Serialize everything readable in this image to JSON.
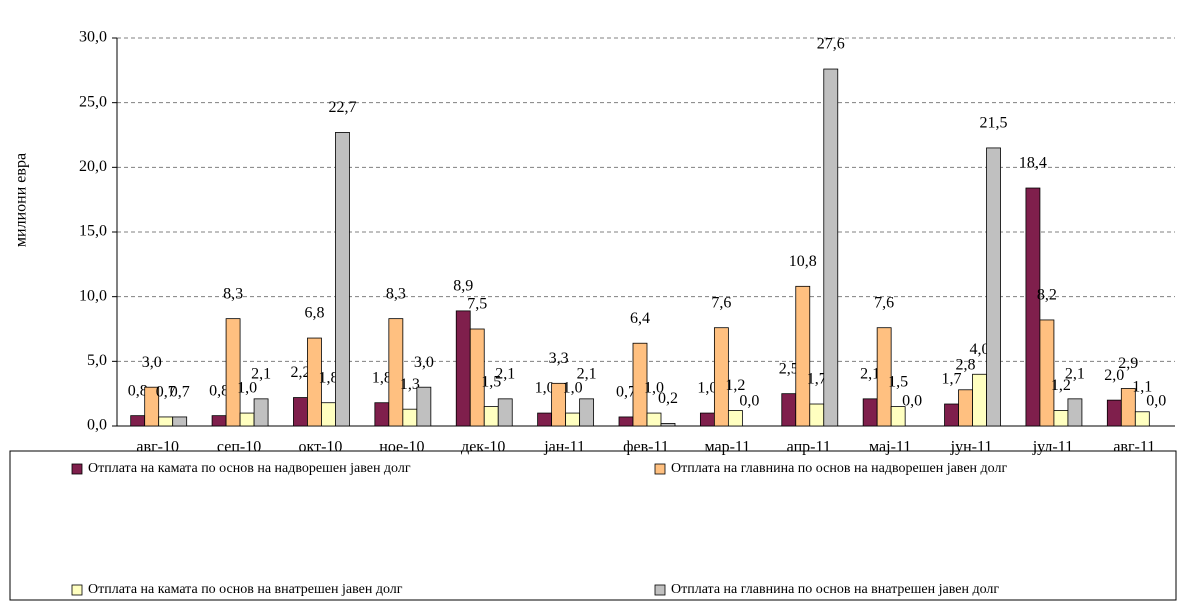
{
  "chart_data": {
    "type": "bar",
    "y_label": "милиони евра",
    "categories": [
      "авг-10",
      "сеп-10",
      "окт-10",
      "ное-10",
      "дек-10",
      "јан-11",
      "фев-11",
      "мар-11",
      "апр-11",
      "мај-11",
      "јун-11",
      "јул-11",
      "авг-11"
    ],
    "series": [
      {
        "name": "Отплата на камата по основ на надворешен јавен долг",
        "color": "#7f1f4c",
        "values": [
          0.8,
          0.8,
          2.2,
          1.8,
          8.9,
          1.0,
          0.7,
          1.0,
          2.5,
          2.1,
          1.7,
          18.4,
          2.0
        ],
        "value_labels": [
          "0,8",
          "0,8",
          "2,2",
          "1,8",
          "8,9",
          "1,0",
          "0,7",
          "1,0",
          "2,5",
          "2,1",
          "1,7",
          "18,4",
          "2,0"
        ]
      },
      {
        "name": "Отплата на главнина по основ на надворешен јавен долг",
        "color": "#ffc080",
        "values": [
          3.0,
          8.3,
          6.8,
          8.3,
          7.5,
          3.3,
          6.4,
          7.6,
          10.8,
          7.6,
          2.8,
          8.2,
          2.9
        ],
        "value_labels": [
          "3,0",
          "8,3",
          "6,8",
          "8,3",
          "7,5",
          "3,3",
          "6,4",
          "7,6",
          "10,8",
          "7,6",
          "2,8",
          "8,2",
          "2,9"
        ]
      },
      {
        "name": "Отплата на камата по основ на внатрешен јавен долг",
        "color": "#ffffc0",
        "values": [
          0.7,
          1.0,
          1.8,
          1.3,
          1.5,
          1.0,
          1.0,
          1.2,
          1.7,
          1.5,
          4.0,
          1.2,
          1.1
        ],
        "value_labels": [
          "0,7",
          "1,0",
          "1,8",
          "1,3",
          "1,5",
          "1,0",
          "1,0",
          "1,2",
          "1,7",
          "1,5",
          "4,0",
          "1,2",
          "1,1"
        ]
      },
      {
        "name": "Отплата на главнина по основ на внатрешен јавен долг",
        "color": "#c0c0c0",
        "values": [
          0.7,
          2.1,
          22.7,
          3.0,
          2.1,
          2.1,
          0.2,
          0.0,
          27.6,
          0.0,
          21.5,
          2.1,
          0.0
        ],
        "value_labels": [
          "0,7",
          "2,1",
          "22,7",
          "3,0",
          "2,1",
          "2,1",
          "0,2",
          "0,0",
          "27,6",
          "0,0",
          "21,5",
          "2,1",
          "0,0"
        ]
      }
    ],
    "ylim": [
      0,
      30
    ],
    "yticks": [
      {
        "value": 0,
        "label": "0,0"
      },
      {
        "value": 5,
        "label": "5,0"
      },
      {
        "value": 10,
        "label": "10,0"
      },
      {
        "value": 15,
        "label": "15,0"
      },
      {
        "value": 20,
        "label": "20,0"
      },
      {
        "value": 25,
        "label": "25,0"
      },
      {
        "value": 30,
        "label": "30,0"
      }
    ],
    "grid": true
  }
}
